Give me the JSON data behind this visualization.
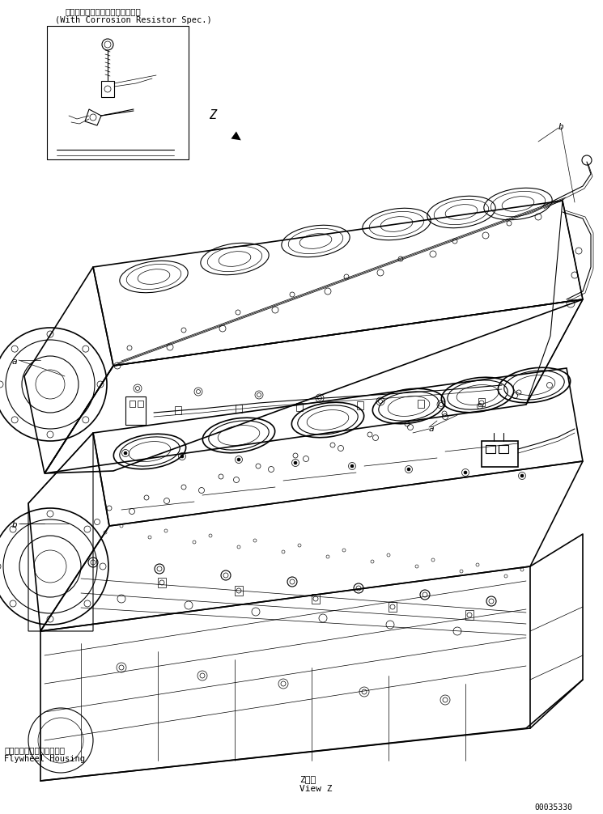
{
  "title_line1": "（コロージョンレジスタ付仕様）",
  "title_line2": "(With Corrosion Resistor Spec.)",
  "label_a1": "a",
  "label_b1": "b",
  "label_a2": "a",
  "label_b2": "b",
  "label_z": "Z",
  "flywheel_jp": "フライホイールハウジング",
  "flywheel_en": "Flywheel Housing",
  "view_z_jp": "Z　視",
  "view_z_en": "View Z",
  "part_number": "00035330",
  "bg_color": "#ffffff",
  "line_color": "#000000",
  "fig_width": 7.45,
  "fig_height": 10.06,
  "dpi": 100
}
